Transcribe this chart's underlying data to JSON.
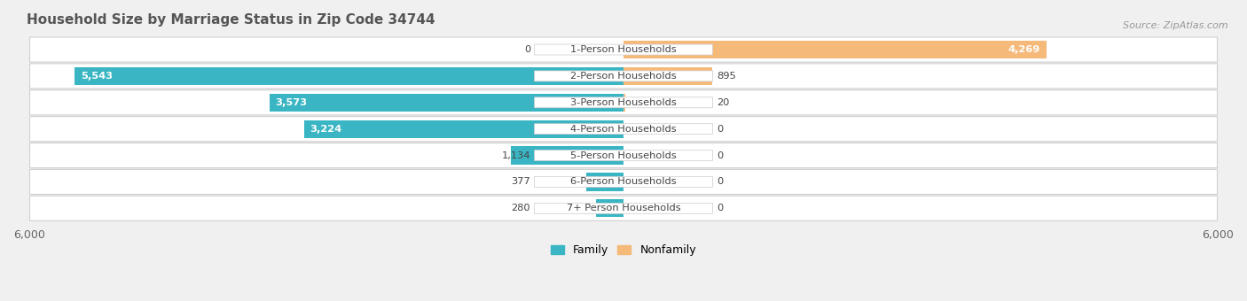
{
  "title": "Household Size by Marriage Status in Zip Code 34744",
  "source": "Source: ZipAtlas.com",
  "categories": [
    "7+ Person Households",
    "6-Person Households",
    "5-Person Households",
    "4-Person Households",
    "3-Person Households",
    "2-Person Households",
    "1-Person Households"
  ],
  "family_values": [
    280,
    377,
    1134,
    3224,
    3573,
    5543,
    0
  ],
  "nonfamily_values": [
    0,
    0,
    0,
    0,
    20,
    895,
    4269
  ],
  "family_color": "#3ab5c3",
  "nonfamily_color": "#f5b97a",
  "axis_max": 6000,
  "bg_color": "#f0f0f0",
  "label_half": 900
}
